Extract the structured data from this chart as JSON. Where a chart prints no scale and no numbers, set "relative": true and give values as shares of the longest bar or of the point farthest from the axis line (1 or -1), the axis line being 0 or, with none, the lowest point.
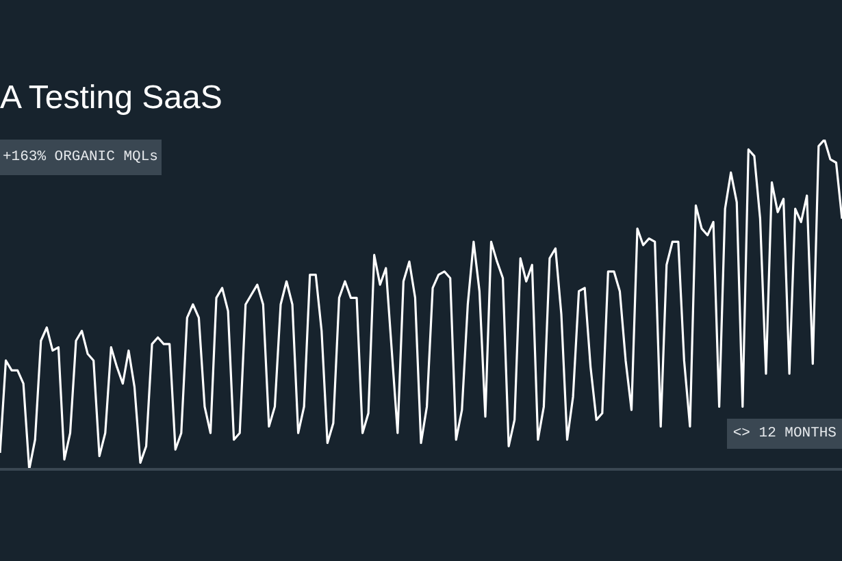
{
  "chart_data": {
    "type": "line",
    "title": "A Testing SaaS",
    "relative": true,
    "annotations": [
      "+163% ORGANIC MQLs",
      "<> 12 MONTHS"
    ],
    "categories": [
      null,
      null,
      null,
      null,
      null,
      null,
      null,
      null,
      null,
      null,
      null,
      null,
      null,
      null,
      null,
      null,
      null,
      null,
      null,
      null,
      null,
      null,
      null,
      null,
      null,
      null,
      null,
      null,
      null,
      null,
      null,
      null,
      null,
      null,
      null,
      null,
      null,
      null,
      null,
      null,
      null,
      null,
      null,
      null,
      null,
      null,
      null,
      null,
      null,
      null,
      null,
      null,
      null,
      null,
      null,
      null,
      null,
      null,
      null,
      null,
      null,
      null,
      null,
      null,
      null,
      null,
      null,
      null,
      null,
      null,
      null,
      null,
      null,
      null,
      null,
      null,
      null,
      null,
      null,
      null,
      null,
      null,
      null,
      null,
      null,
      null,
      null,
      null,
      null,
      null,
      null,
      null,
      null,
      null,
      null,
      null,
      null,
      null,
      null,
      null,
      null,
      null,
      null,
      null,
      null,
      null,
      null,
      null,
      null,
      null,
      null,
      null,
      null,
      null,
      null,
      null,
      null,
      null,
      null,
      null,
      null,
      null,
      null,
      null,
      null,
      null,
      null,
      null,
      null,
      null,
      null,
      null,
      null,
      null,
      null,
      null,
      null,
      null,
      null,
      null,
      null,
      null,
      null,
      null,
      null
    ],
    "series": [
      {
        "color": "#ffffff",
        "values": [
          0.05,
          0.33,
          0.3,
          0.3,
          0.26,
          0.0,
          0.09,
          0.39,
          0.43,
          0.36,
          0.37,
          0.03,
          0.11,
          0.39,
          0.42,
          0.35,
          0.33,
          0.04,
          0.11,
          0.37,
          0.31,
          0.26,
          0.36,
          0.25,
          0.02,
          0.07,
          0.38,
          0.4,
          0.38,
          0.38,
          0.06,
          0.11,
          0.46,
          0.5,
          0.46,
          0.19,
          0.11,
          0.52,
          0.55,
          0.48,
          0.09,
          0.11,
          0.5,
          0.53,
          0.56,
          0.5,
          0.13,
          0.19,
          0.5,
          0.57,
          0.5,
          0.11,
          0.19,
          0.59,
          0.59,
          0.42,
          0.08,
          0.14,
          0.52,
          0.57,
          0.52,
          0.52,
          0.11,
          0.17,
          0.65,
          0.56,
          0.61,
          0.36,
          0.11,
          0.57,
          0.63,
          0.52,
          0.08,
          0.19,
          0.55,
          0.59,
          0.6,
          0.58,
          0.09,
          0.18,
          0.5,
          0.69,
          0.54,
          0.16,
          0.69,
          0.63,
          0.58,
          0.07,
          0.15,
          0.64,
          0.57,
          0.62,
          0.09,
          0.19,
          0.64,
          0.67,
          0.47,
          0.09,
          0.22,
          0.54,
          0.55,
          0.31,
          0.15,
          0.17,
          0.6,
          0.6,
          0.54,
          0.33,
          0.18,
          0.73,
          0.68,
          0.7,
          0.69,
          0.13,
          0.62,
          0.69,
          0.69,
          0.33,
          0.13,
          0.8,
          0.73,
          0.71,
          0.75,
          0.19,
          0.79,
          0.9,
          0.81,
          0.19,
          0.97,
          0.95,
          0.76,
          0.29,
          0.87,
          0.78,
          0.82,
          0.29,
          0.79,
          0.75,
          0.83,
          0.32,
          0.98,
          1.0,
          0.94,
          0.93,
          0.76
        ]
      }
    ]
  }
}
